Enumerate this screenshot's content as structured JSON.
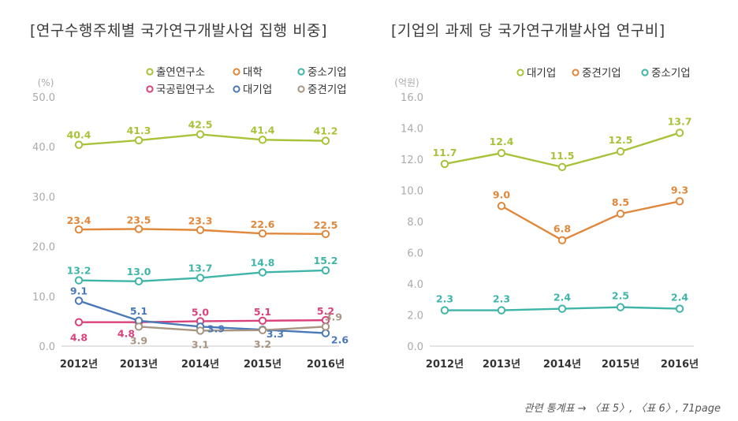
{
  "chart_data": [
    {
      "type": "line",
      "title": "[연구수행주체별 국가연구개발사업 집행 비중]",
      "ylabel": "(%)",
      "ylim": [
        0,
        50
      ],
      "yticks": [
        "0.0",
        "10.0",
        "20.0",
        "30.0",
        "40.0",
        "50.0"
      ],
      "categories": [
        "2012년",
        "2013년",
        "2014년",
        "2015년",
        "2016년"
      ],
      "grid": false,
      "legend": "top-right",
      "series": [
        {
          "name": "출연연구소",
          "color": "#a8c23a",
          "values": [
            40.4,
            41.3,
            42.5,
            41.4,
            41.2
          ],
          "labels": [
            "40.4",
            "41.3",
            "42.5",
            "41.4",
            "41.2"
          ]
        },
        {
          "name": "대학",
          "color": "#e0873a",
          "values": [
            23.4,
            23.5,
            23.3,
            22.6,
            22.5
          ],
          "labels": [
            "23.4",
            "23.5",
            "23.3",
            "22.6",
            "22.5"
          ]
        },
        {
          "name": "중소기업",
          "color": "#3fb5a8",
          "values": [
            13.2,
            13.0,
            13.7,
            14.8,
            15.2
          ],
          "labels": [
            "13.2",
            "13.0",
            "13.7",
            "14.8",
            "15.2"
          ]
        },
        {
          "name": "국공립연구소",
          "color": "#d9417a",
          "values": [
            4.8,
            4.8,
            5.0,
            5.1,
            5.2
          ],
          "labels": [
            "4.8",
            "4.8",
            "5.0",
            "5.1",
            "5.2"
          ]
        },
        {
          "name": "대기업",
          "color": "#4a78b8",
          "values": [
            9.1,
            5.1,
            3.9,
            3.3,
            2.6
          ],
          "labels": [
            "9.1",
            "5.1",
            "3.9",
            "3.3",
            "2.6"
          ]
        },
        {
          "name": "중견기업",
          "color": "#a89582",
          "values": [
            null,
            3.9,
            3.1,
            3.2,
            3.9
          ],
          "labels": [
            "",
            "3.9",
            "3.1",
            "3.2",
            "3.9"
          ]
        }
      ]
    },
    {
      "type": "line",
      "title": "[기업의 과제 당 국가연구개발사업 연구비]",
      "ylabel": "(억원)",
      "ylim": [
        0,
        16
      ],
      "yticks": [
        "0.0",
        "2.0",
        "4.0",
        "6.0",
        "8.0",
        "10.0",
        "12.0",
        "14.0",
        "16.0"
      ],
      "categories": [
        "2012년",
        "2013년",
        "2014년",
        "2015년",
        "2016년"
      ],
      "grid": false,
      "legend": "top-right",
      "series": [
        {
          "name": "대기업",
          "color": "#a8c23a",
          "values": [
            11.7,
            12.4,
            11.5,
            12.5,
            13.7
          ],
          "labels": [
            "11.7",
            "12.4",
            "11.5",
            "12.5",
            "13.7"
          ]
        },
        {
          "name": "중견기업",
          "color": "#e0873a",
          "values": [
            null,
            9.0,
            6.8,
            8.5,
            9.3
          ],
          "labels": [
            "",
            "9.0",
            "6.8",
            "8.5",
            "9.3"
          ]
        },
        {
          "name": "중소기업",
          "color": "#3fb5a8",
          "values": [
            2.3,
            2.3,
            2.4,
            2.5,
            2.4
          ],
          "labels": [
            "2.3",
            "2.3",
            "2.4",
            "2.5",
            "2.4"
          ]
        }
      ]
    }
  ],
  "footnote": "관련 통계표 → 〈표 5〉, 〈표 6〉, 71page"
}
